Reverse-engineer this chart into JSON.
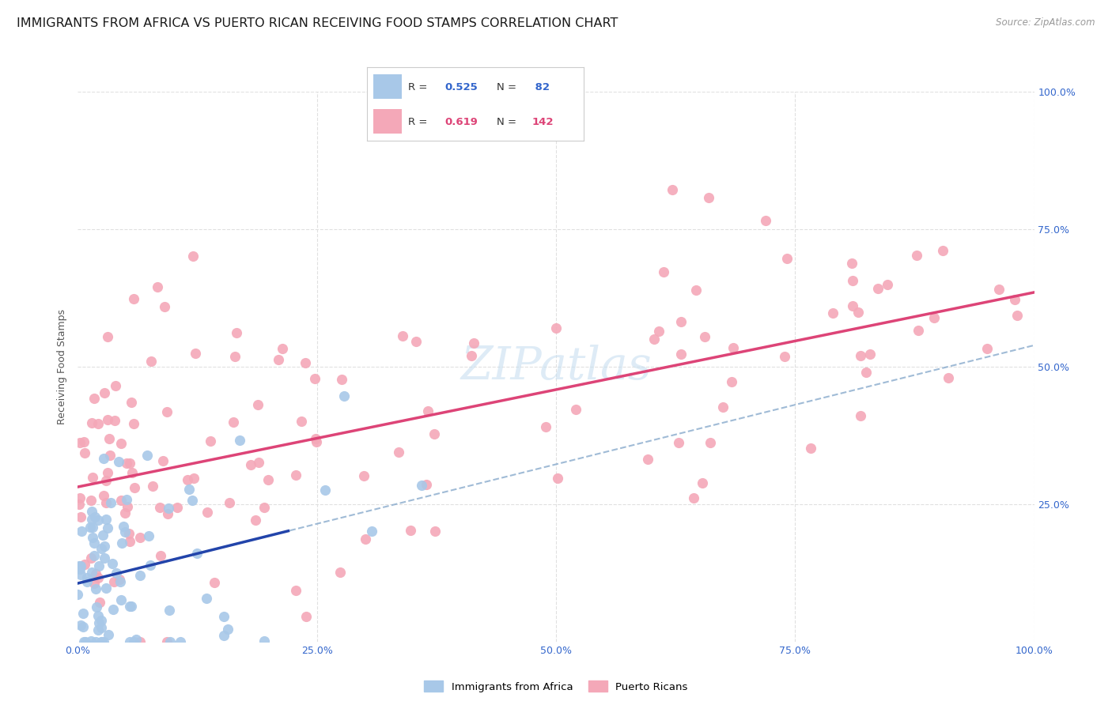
{
  "title": "IMMIGRANTS FROM AFRICA VS PUERTO RICAN RECEIVING FOOD STAMPS CORRELATION CHART",
  "source": "Source: ZipAtlas.com",
  "ylabel": "Receiving Food Stamps",
  "xlim": [
    0,
    100
  ],
  "ylim": [
    0,
    100
  ],
  "blue_color": "#a8c8e8",
  "blue_color_dark": "#6699cc",
  "pink_color": "#f4a8b8",
  "pink_color_dark": "#e87090",
  "blue_line_color": "#2244aa",
  "pink_line_color": "#dd4477",
  "blue_dash_color": "#88aacc",
  "watermark_color": "#c8dff0",
  "background_color": "#ffffff",
  "grid_color": "#e0e0e0",
  "title_fontsize": 11.5,
  "label_fontsize": 9,
  "tick_fontsize": 9,
  "tick_color": "#3366cc",
  "axis_label_color": "#555555",
  "africa_R": 0.525,
  "africa_N": 82,
  "pr_R": 0.619,
  "pr_N": 142
}
